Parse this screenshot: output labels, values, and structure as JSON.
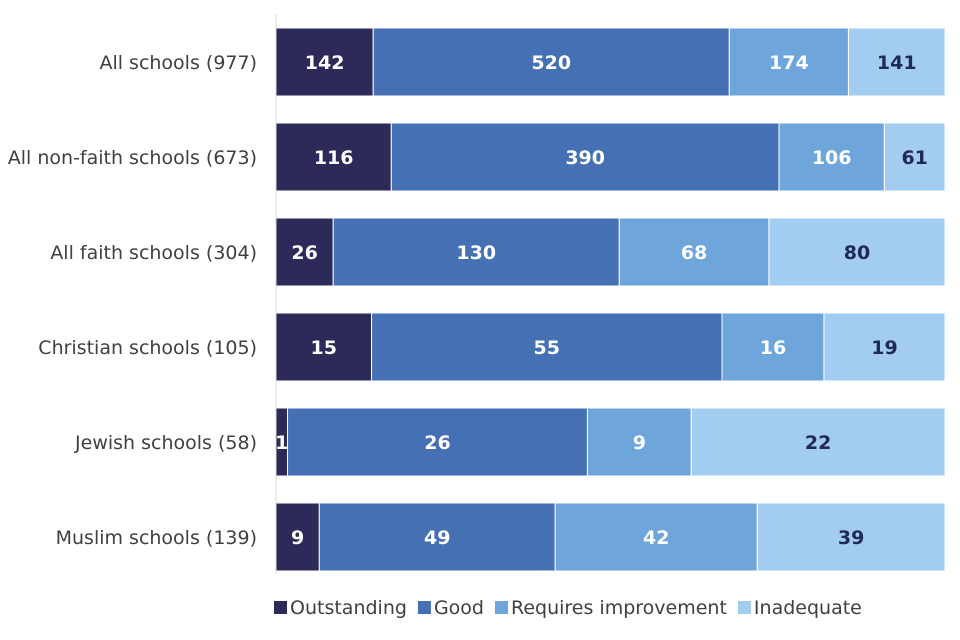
{
  "chart_data": {
    "type": "bar",
    "orientation": "horizontal",
    "stacked": "percent",
    "title": "",
    "xlabel": "",
    "ylabel": "",
    "grid": false,
    "legend_position": "bottom",
    "categories": [
      "All schools (977)",
      "All non-faith schools (673)",
      "All faith schools (304)",
      "Christian schools (105)",
      "Jewish schools (58)",
      "Muslim schools (139)"
    ],
    "series": [
      {
        "name": "Outstanding",
        "color": "#2b2a59",
        "label_color": "#ffffff",
        "values": [
          142,
          116,
          26,
          15,
          1,
          9
        ]
      },
      {
        "name": "Good",
        "color": "#4570b4",
        "label_color": "#ffffff",
        "values": [
          520,
          390,
          130,
          55,
          26,
          49
        ]
      },
      {
        "name": "Requires improvement",
        "color": "#6ea6dc",
        "label_color": "#ffffff",
        "values": [
          174,
          106,
          68,
          16,
          9,
          42
        ]
      },
      {
        "name": "Inadequate",
        "color": "#a2cdf0",
        "label_color": "#1f2a55",
        "values": [
          141,
          61,
          80,
          19,
          22,
          39
        ]
      }
    ]
  }
}
